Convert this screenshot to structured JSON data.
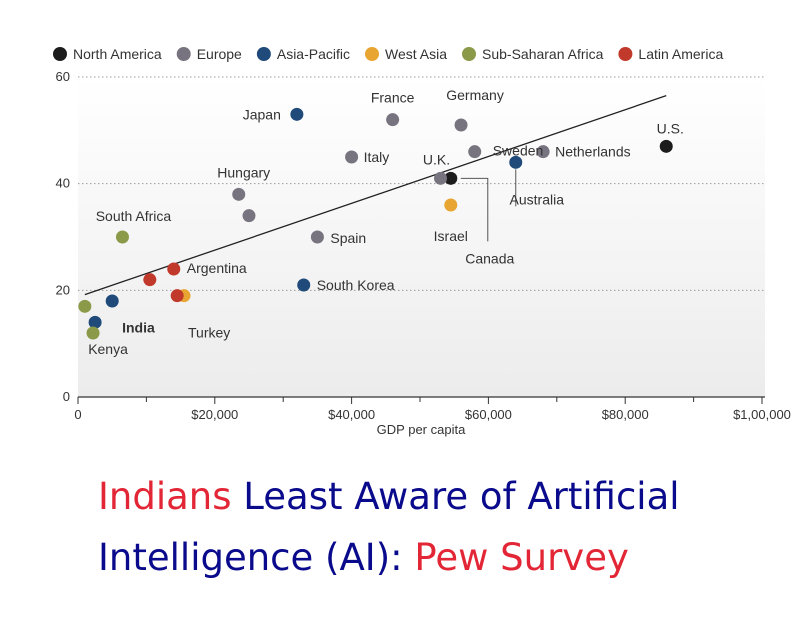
{
  "chart_data": {
    "type": "scatter",
    "xlabel": "GDP per capita",
    "ylabel": "",
    "xlim": [
      0,
      100000
    ],
    "ylim": [
      0,
      60
    ],
    "x_ticks": [
      {
        "value": 0,
        "label": "0"
      },
      {
        "value": 20000,
        "label": "$20,000"
      },
      {
        "value": 40000,
        "label": "$40,000"
      },
      {
        "value": 60000,
        "label": "$60,000"
      },
      {
        "value": 80000,
        "label": "$80,000"
      },
      {
        "value": 100000,
        "label": "$1,00,000"
      }
    ],
    "y_ticks": [
      {
        "value": 0,
        "label": "0"
      },
      {
        "value": 20,
        "label": "20"
      },
      {
        "value": 40,
        "label": "40"
      },
      {
        "value": 60,
        "label": "60"
      }
    ],
    "legend": [
      {
        "name": "North America",
        "color": "#1c1c1c"
      },
      {
        "name": "Europe",
        "color": "#77737f"
      },
      {
        "name": "Asia-Pacific",
        "color": "#1f4a7a"
      },
      {
        "name": "West Asia",
        "color": "#e8a532"
      },
      {
        "name": "Sub-Saharan Africa",
        "color": "#8a9a48"
      },
      {
        "name": "Latin America",
        "color": "#c0392b"
      }
    ],
    "legend_position": "top",
    "trendline": {
      "x": [
        1000,
        86000
      ],
      "y": [
        19.2,
        56.5
      ]
    },
    "points": [
      {
        "label": "U.S.",
        "x": 86000,
        "y": 47,
        "region": "North America"
      },
      {
        "label": "Canada",
        "x": 54500,
        "y": 41,
        "region": "North America"
      },
      {
        "label": "U.K.",
        "x": 53000,
        "y": 41,
        "region": "Europe"
      },
      {
        "label": "France",
        "x": 46000,
        "y": 52,
        "region": "Europe"
      },
      {
        "label": "Germany",
        "x": 56000,
        "y": 51,
        "region": "Europe"
      },
      {
        "label": "Sweden",
        "x": 58000,
        "y": 46,
        "region": "Europe"
      },
      {
        "label": "Netherlands",
        "x": 68000,
        "y": 46,
        "region": "Europe"
      },
      {
        "label": "Italy",
        "x": 40000,
        "y": 45,
        "region": "Europe"
      },
      {
        "label": "Hungary",
        "x": 23500,
        "y": 38,
        "region": "Europe"
      },
      {
        "label": "",
        "x": 25000,
        "y": 34,
        "region": "Europe"
      },
      {
        "label": "Spain",
        "x": 35000,
        "y": 30,
        "region": "Europe"
      },
      {
        "label": "Japan",
        "x": 32000,
        "y": 53,
        "region": "Asia-Pacific"
      },
      {
        "label": "Australia",
        "x": 64000,
        "y": 44,
        "region": "Asia-Pacific"
      },
      {
        "label": "South Korea",
        "x": 33000,
        "y": 21,
        "region": "Asia-Pacific"
      },
      {
        "label": "",
        "x": 5000,
        "y": 18,
        "region": "Asia-Pacific"
      },
      {
        "label": "India",
        "x": 2500,
        "y": 14,
        "region": "Asia-Pacific"
      },
      {
        "label": "Israel",
        "x": 54500,
        "y": 36,
        "region": "West Asia"
      },
      {
        "label": "Turkey",
        "x": 15500,
        "y": 19,
        "region": "West Asia"
      },
      {
        "label": "South Africa",
        "x": 6500,
        "y": 30,
        "region": "Sub-Saharan Africa"
      },
      {
        "label": "",
        "x": 1000,
        "y": 17,
        "region": "Sub-Saharan Africa"
      },
      {
        "label": "Kenya",
        "x": 2200,
        "y": 12,
        "region": "Sub-Saharan Africa"
      },
      {
        "label": "Argentina",
        "x": 14000,
        "y": 24,
        "region": "Latin America"
      },
      {
        "label": "",
        "x": 10500,
        "y": 22,
        "region": "Latin America"
      },
      {
        "label": "",
        "x": 14500,
        "y": 19,
        "region": "Latin America"
      }
    ]
  },
  "headline": {
    "line1_red": "Indians",
    "line1_blue": " Least Aware of Artificial",
    "line2_blue": "Intelligence (AI): ",
    "line2_red": "Pew Survey"
  }
}
